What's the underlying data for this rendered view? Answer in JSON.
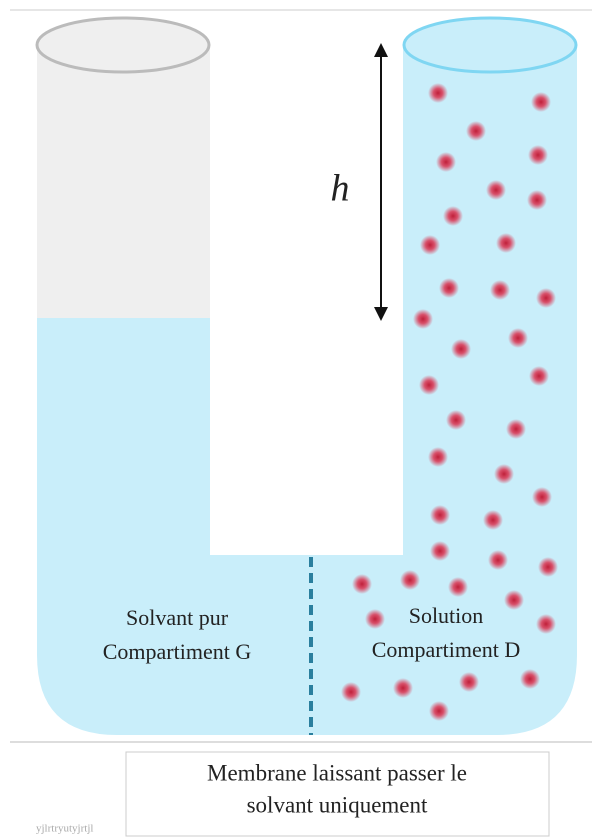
{
  "diagram": {
    "height_label": "h",
    "left": {
      "line1": "Solvant pur",
      "line2": "Compartiment G"
    },
    "right": {
      "line1": "Solution",
      "line2": "Compartiment D"
    },
    "caption": {
      "line1": "Membrane laissant passer le",
      "line2": "solvant uniquement"
    },
    "watermark": "yjlrtryutyjrtjl"
  }
}
